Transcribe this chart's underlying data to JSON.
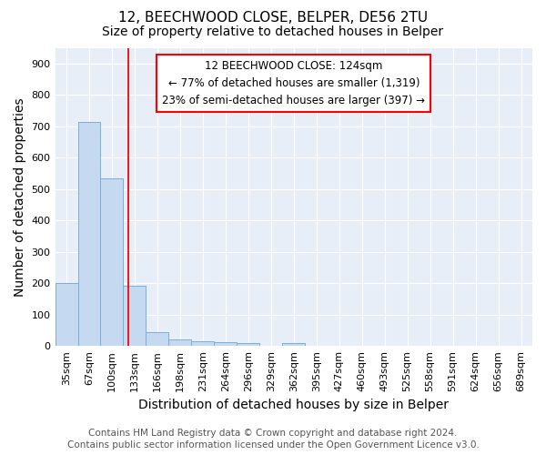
{
  "title_line1": "12, BEECHWOOD CLOSE, BELPER, DE56 2TU",
  "title_line2": "Size of property relative to detached houses in Belper",
  "xlabel": "Distribution of detached houses by size in Belper",
  "ylabel": "Number of detached properties",
  "categories": [
    "35sqm",
    "67sqm",
    "100sqm",
    "133sqm",
    "166sqm",
    "198sqm",
    "231sqm",
    "264sqm",
    "296sqm",
    "329sqm",
    "362sqm",
    "395sqm",
    "427sqm",
    "460sqm",
    "493sqm",
    "525sqm",
    "558sqm",
    "591sqm",
    "624sqm",
    "656sqm",
    "689sqm"
  ],
  "values": [
    200,
    715,
    535,
    193,
    45,
    22,
    16,
    12,
    8,
    0,
    8,
    0,
    0,
    0,
    0,
    0,
    0,
    0,
    0,
    0,
    0
  ],
  "bar_color": "#c5d9f0",
  "bar_edge_color": "#7aafd4",
  "annotation_text": "12 BEECHWOOD CLOSE: 124sqm\n← 77% of detached houses are smaller (1,319)\n23% of semi-detached houses are larger (397) →",
  "ylim": [
    0,
    950
  ],
  "yticks": [
    0,
    100,
    200,
    300,
    400,
    500,
    600,
    700,
    800,
    900
  ],
  "footer_line1": "Contains HM Land Registry data © Crown copyright and database right 2024.",
  "footer_line2": "Contains public sector information licensed under the Open Government Licence v3.0.",
  "background_color": "#e8eef8",
  "grid_color": "#ffffff",
  "title_fontsize": 11,
  "subtitle_fontsize": 10,
  "axis_label_fontsize": 10,
  "tick_fontsize": 8,
  "footer_fontsize": 7.5
}
